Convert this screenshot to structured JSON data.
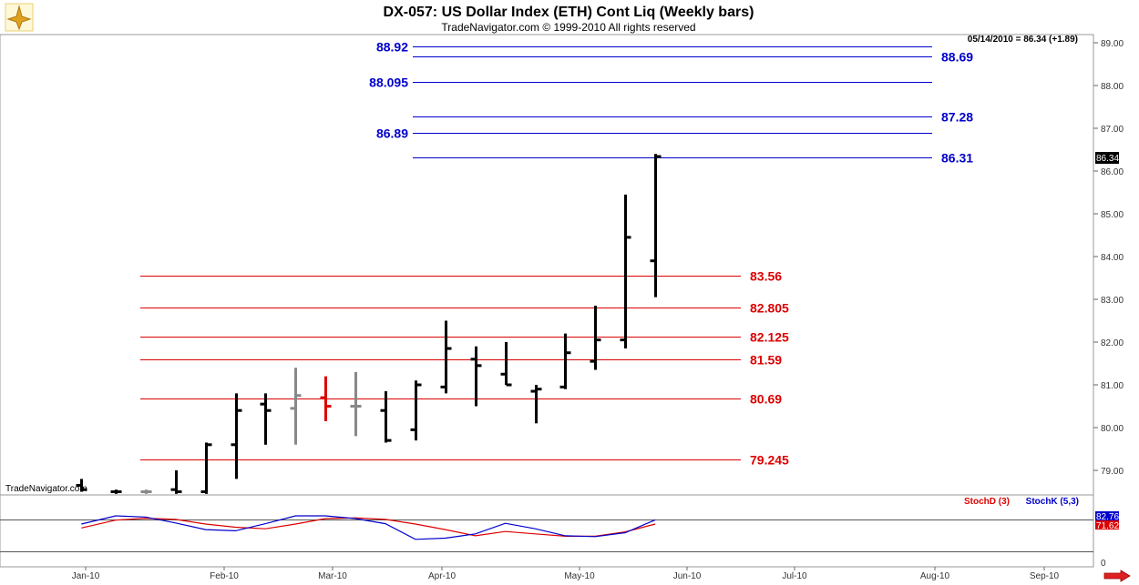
{
  "title": "DX-057:  US Dollar Index (ETH) Cont Liq  (Weekly bars)",
  "copyright": "TradeNavigator.com © 1999-2010 All rights reserved",
  "quote": "05/14/2010 = 86.34 (+1.89)",
  "watermark": "TradeNavigator.com",
  "last_price_label": "86.34",
  "colors": {
    "resistance": "#0000cc",
    "support": "#dd0000",
    "bar": "#000000",
    "bar_gray": "#888888",
    "bar_red": "#dd0000",
    "stoch_d": "#dd0000",
    "stoch_k": "#0000cc"
  },
  "icons": {
    "logo": "compass-logo-icon",
    "scroll": "right-arrow-icon"
  },
  "chart_data": [
    {
      "type": "ohlc",
      "x_labels": [
        "Jan-10",
        "Feb-10",
        "Mar-10",
        "Apr-10",
        "May-10",
        "Jun-10",
        "Jul-10",
        "Aug-10",
        "Sep-10"
      ],
      "y_ticks": [
        "79.00",
        "80.00",
        "81.00",
        "82.00",
        "83.00",
        "84.00",
        "85.00",
        "86.00",
        "87.00",
        "88.00",
        "89.00"
      ],
      "ylim": [
        78.45,
        89.2
      ],
      "bars": [
        {
          "date": "2009-12-31",
          "open": 78.65,
          "high": 78.8,
          "low": 78.5,
          "close": 78.55,
          "color": "black"
        },
        {
          "date": "2010-01-08",
          "open": 78.5,
          "high": 78.55,
          "low": 78.45,
          "close": 78.5,
          "color": "black"
        },
        {
          "date": "2010-01-15",
          "open": 78.5,
          "high": 78.55,
          "low": 78.45,
          "close": 78.5,
          "color": "gray"
        },
        {
          "date": "2010-01-22",
          "open": 78.55,
          "high": 79.0,
          "low": 78.45,
          "close": 78.5,
          "color": "black"
        },
        {
          "date": "2010-01-29",
          "open": 78.5,
          "high": 79.65,
          "low": 78.45,
          "close": 79.6,
          "color": "black"
        },
        {
          "date": "2010-02-05",
          "open": 79.6,
          "high": 80.8,
          "low": 78.8,
          "close": 80.4,
          "color": "black"
        },
        {
          "date": "2010-02-12",
          "open": 80.55,
          "high": 80.8,
          "low": 79.6,
          "close": 80.4,
          "color": "black"
        },
        {
          "date": "2010-02-19",
          "open": 80.45,
          "high": 81.4,
          "low": 79.6,
          "close": 80.75,
          "color": "gray"
        },
        {
          "date": "2010-02-26",
          "open": 80.7,
          "high": 81.2,
          "low": 80.15,
          "close": 80.5,
          "color": "red"
        },
        {
          "date": "2010-03-05",
          "open": 80.5,
          "high": 81.3,
          "low": 79.8,
          "close": 80.5,
          "color": "gray"
        },
        {
          "date": "2010-03-12",
          "open": 80.4,
          "high": 80.85,
          "low": 79.65,
          "close": 79.7,
          "color": "black"
        },
        {
          "date": "2010-03-19",
          "open": 79.95,
          "high": 81.1,
          "low": 79.7,
          "close": 81.0,
          "color": "black"
        },
        {
          "date": "2010-03-26",
          "open": 80.95,
          "high": 82.5,
          "low": 80.8,
          "close": 81.85,
          "color": "black"
        },
        {
          "date": "2010-04-02",
          "open": 81.6,
          "high": 81.9,
          "low": 80.5,
          "close": 81.45,
          "color": "black"
        },
        {
          "date": "2010-04-09",
          "open": 81.25,
          "high": 82.0,
          "low": 81.0,
          "close": 81.0,
          "color": "black"
        },
        {
          "date": "2010-04-16",
          "open": 80.85,
          "high": 81.0,
          "low": 80.1,
          "close": 80.9,
          "color": "black"
        },
        {
          "date": "2010-04-23",
          "open": 80.95,
          "high": 82.2,
          "low": 80.9,
          "close": 81.75,
          "color": "black"
        },
        {
          "date": "2010-04-30",
          "open": 81.55,
          "high": 82.85,
          "low": 81.35,
          "close": 82.05,
          "color": "black"
        },
        {
          "date": "2010-05-07",
          "open": 82.05,
          "high": 85.45,
          "low": 81.85,
          "close": 84.45,
          "color": "black"
        },
        {
          "date": "2010-05-14",
          "open": 83.9,
          "high": 86.4,
          "low": 83.05,
          "close": 86.34,
          "color": "black"
        }
      ]
    },
    {
      "type": "line",
      "legend": [
        "StochD (3)",
        "StochK (5,3)"
      ],
      "y_ticks": [
        "0"
      ],
      "last_labels": [
        "82.76",
        "71.62"
      ],
      "series": [
        {
          "name": "StochD (3)",
          "color": "#dd0000",
          "values": [
            62,
            82,
            87,
            84,
            72,
            64,
            60,
            72,
            86,
            88,
            84,
            72,
            58,
            42,
            53,
            47,
            41,
            41,
            52,
            72
          ]
        },
        {
          "name": "StochK (5,3)",
          "color": "#0000cc",
          "values": [
            72,
            93,
            90,
            75,
            58,
            55,
            73,
            93,
            93,
            86,
            73,
            33,
            36,
            47,
            74,
            60,
            42,
            40,
            50,
            82.76
          ]
        }
      ]
    }
  ],
  "levels": {
    "resistance": [
      {
        "value": 88.92,
        "label": "88.92",
        "side": "left"
      },
      {
        "value": 88.69,
        "label": "88.69",
        "side": "right"
      },
      {
        "value": 88.095,
        "label": "88.095",
        "side": "left"
      },
      {
        "value": 87.28,
        "label": "87.28",
        "side": "right"
      },
      {
        "value": 86.89,
        "label": "86.89",
        "side": "left"
      },
      {
        "value": 86.31,
        "label": "86.31",
        "side": "right"
      }
    ],
    "support": [
      {
        "value": 83.56,
        "label": "83.56"
      },
      {
        "value": 82.805,
        "label": "82.805"
      },
      {
        "value": 82.125,
        "label": "82.125"
      },
      {
        "value": 81.59,
        "label": "81.59"
      },
      {
        "value": 80.69,
        "label": "80.69"
      },
      {
        "value": 79.245,
        "label": "79.245"
      }
    ]
  }
}
